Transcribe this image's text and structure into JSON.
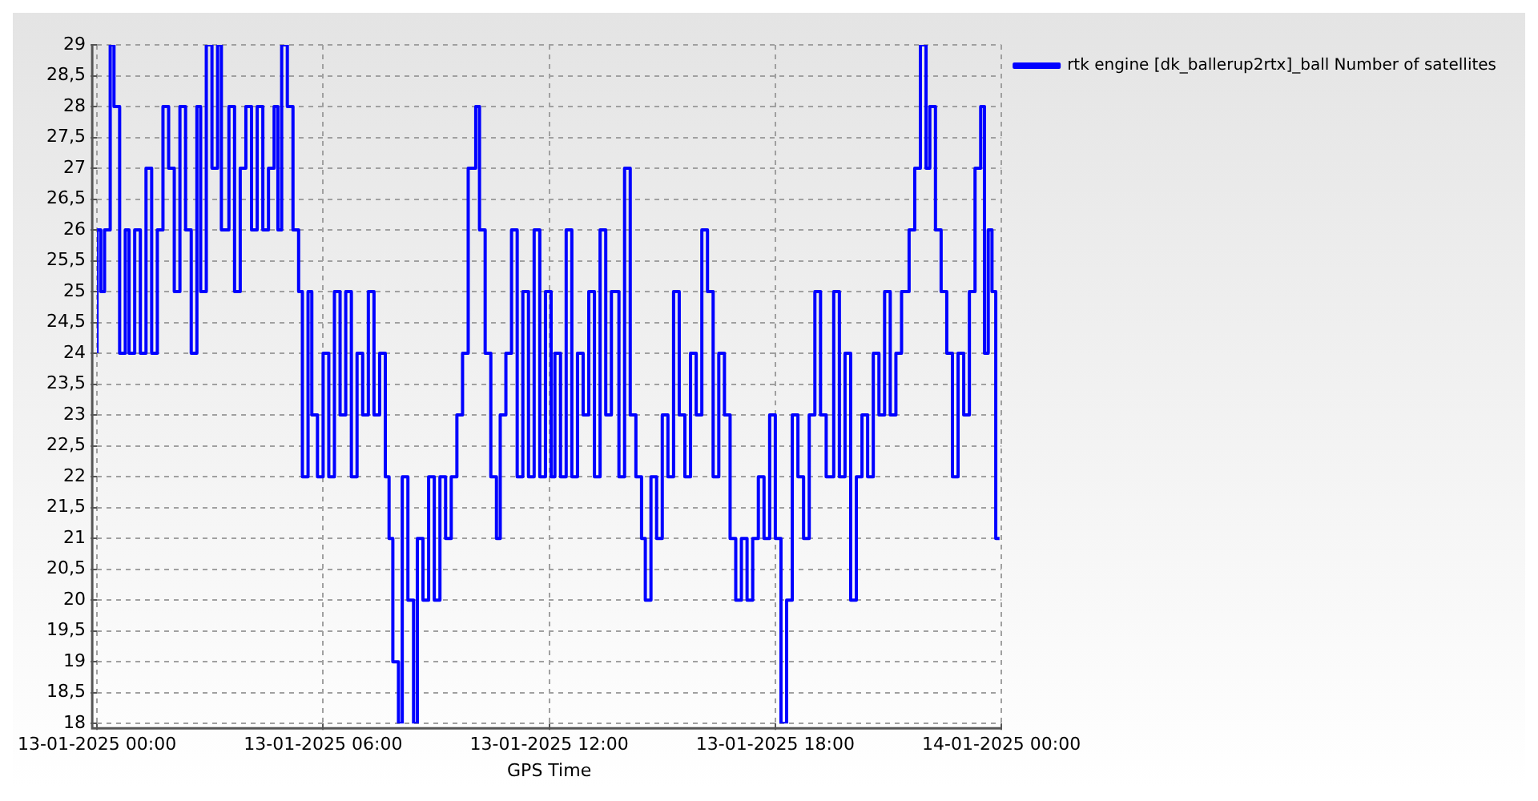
{
  "chart_data": {
    "type": "step",
    "xlabel": "GPS Time",
    "legend": "top right",
    "grid": true,
    "marker": "none",
    "line_style": "solid",
    "xlim": [
      "2025-01-13T00:00",
      "2025-01-14T00:00"
    ],
    "xticks": [
      {
        "value": "2025-01-13T00:00",
        "label": "13-01-2025 00:00"
      },
      {
        "value": "2025-01-13T06:00",
        "label": "13-01-2025 06:00"
      },
      {
        "value": "2025-01-13T12:00",
        "label": "13-01-2025 12:00"
      },
      {
        "value": "2025-01-13T18:00",
        "label": "13-01-2025 18:00"
      },
      {
        "value": "2025-01-14T00:00",
        "label": "14-01-2025 00:00"
      }
    ],
    "ylim": [
      18,
      29
    ],
    "yticks": [
      18,
      {
        "value": 18.5,
        "label": "18,5"
      },
      19,
      {
        "value": 19.5,
        "label": "19,5"
      },
      20,
      {
        "value": 20.5,
        "label": "20,5"
      },
      21,
      {
        "value": 21.5,
        "label": "21,5"
      },
      22,
      {
        "value": 22.5,
        "label": "22,5"
      },
      23,
      {
        "value": 23.5,
        "label": "23,5"
      },
      24,
      {
        "value": 24.5,
        "label": "24,5"
      },
      25,
      {
        "value": 25.5,
        "label": "25,5"
      },
      26,
      {
        "value": 26.5,
        "label": "26,5"
      },
      27,
      {
        "value": 27.5,
        "label": "27,5"
      },
      28,
      {
        "value": 28.5,
        "label": "28,5"
      },
      29
    ],
    "x": [
      "2025-01-13T00:00",
      "2025-01-13T00:06",
      "2025-01-13T00:12",
      "2025-01-13T00:21",
      "2025-01-13T00:27",
      "2025-01-13T00:36",
      "2025-01-13T00:45",
      "2025-01-13T00:51",
      "2025-01-13T01:00",
      "2025-01-13T01:09",
      "2025-01-13T01:18",
      "2025-01-13T01:27",
      "2025-01-13T01:36",
      "2025-01-13T01:45",
      "2025-01-13T01:54",
      "2025-01-13T02:03",
      "2025-01-13T02:12",
      "2025-01-13T02:21",
      "2025-01-13T02:30",
      "2025-01-13T02:39",
      "2025-01-13T02:45",
      "2025-01-13T02:54",
      "2025-01-13T03:03",
      "2025-01-13T03:12",
      "2025-01-13T03:18",
      "2025-01-13T03:30",
      "2025-01-13T03:39",
      "2025-01-13T03:48",
      "2025-01-13T03:57",
      "2025-01-13T04:06",
      "2025-01-13T04:15",
      "2025-01-13T04:24",
      "2025-01-13T04:33",
      "2025-01-13T04:42",
      "2025-01-13T04:48",
      "2025-01-13T04:54",
      "2025-01-13T05:03",
      "2025-01-13T05:12",
      "2025-01-13T05:21",
      "2025-01-13T05:27",
      "2025-01-13T05:36",
      "2025-01-13T05:42",
      "2025-01-13T05:51",
      "2025-01-13T06:00",
      "2025-01-13T06:09",
      "2025-01-13T06:18",
      "2025-01-13T06:27",
      "2025-01-13T06:36",
      "2025-01-13T06:45",
      "2025-01-13T06:54",
      "2025-01-13T07:03",
      "2025-01-13T07:12",
      "2025-01-13T07:21",
      "2025-01-13T07:30",
      "2025-01-13T07:39",
      "2025-01-13T07:45",
      "2025-01-13T07:51",
      "2025-01-13T08:00",
      "2025-01-13T08:06",
      "2025-01-13T08:15",
      "2025-01-13T08:24",
      "2025-01-13T08:30",
      "2025-01-13T08:39",
      "2025-01-13T08:48",
      "2025-01-13T08:57",
      "2025-01-13T09:06",
      "2025-01-13T09:15",
      "2025-01-13T09:24",
      "2025-01-13T09:33",
      "2025-01-13T09:42",
      "2025-01-13T09:51",
      "2025-01-13T10:03",
      "2025-01-13T10:09",
      "2025-01-13T10:18",
      "2025-01-13T10:27",
      "2025-01-13T10:36",
      "2025-01-13T10:42",
      "2025-01-13T10:51",
      "2025-01-13T11:00",
      "2025-01-13T11:09",
      "2025-01-13T11:18",
      "2025-01-13T11:27",
      "2025-01-13T11:36",
      "2025-01-13T11:45",
      "2025-01-13T11:54",
      "2025-01-13T12:03",
      "2025-01-13T12:09",
      "2025-01-13T12:18",
      "2025-01-13T12:27",
      "2025-01-13T12:36",
      "2025-01-13T12:45",
      "2025-01-13T12:54",
      "2025-01-13T13:03",
      "2025-01-13T13:12",
      "2025-01-13T13:21",
      "2025-01-13T13:30",
      "2025-01-13T13:39",
      "2025-01-13T13:51",
      "2025-01-13T14:00",
      "2025-01-13T14:09",
      "2025-01-13T14:18",
      "2025-01-13T14:27",
      "2025-01-13T14:33",
      "2025-01-13T14:42",
      "2025-01-13T14:51",
      "2025-01-13T15:00",
      "2025-01-13T15:09",
      "2025-01-13T15:18",
      "2025-01-13T15:27",
      "2025-01-13T15:36",
      "2025-01-13T15:45",
      "2025-01-13T15:54",
      "2025-01-13T16:03",
      "2025-01-13T16:12",
      "2025-01-13T16:21",
      "2025-01-13T16:30",
      "2025-01-13T16:39",
      "2025-01-13T16:48",
      "2025-01-13T16:57",
      "2025-01-13T17:06",
      "2025-01-13T17:15",
      "2025-01-13T17:24",
      "2025-01-13T17:33",
      "2025-01-13T17:42",
      "2025-01-13T17:51",
      "2025-01-13T18:00",
      "2025-01-13T18:09",
      "2025-01-13T18:18",
      "2025-01-13T18:27",
      "2025-01-13T18:36",
      "2025-01-13T18:45",
      "2025-01-13T18:54",
      "2025-01-13T19:03",
      "2025-01-13T19:12",
      "2025-01-13T19:21",
      "2025-01-13T19:33",
      "2025-01-13T19:42",
      "2025-01-13T19:51",
      "2025-01-13T20:00",
      "2025-01-13T20:09",
      "2025-01-13T20:18",
      "2025-01-13T20:27",
      "2025-01-13T20:36",
      "2025-01-13T20:45",
      "2025-01-13T20:54",
      "2025-01-13T21:03",
      "2025-01-13T21:12",
      "2025-01-13T21:21",
      "2025-01-13T21:33",
      "2025-01-13T21:42",
      "2025-01-13T21:51",
      "2025-01-13T22:00",
      "2025-01-13T22:06",
      "2025-01-13T22:15",
      "2025-01-13T22:24",
      "2025-01-13T22:33",
      "2025-01-13T22:42",
      "2025-01-13T22:51",
      "2025-01-13T23:00",
      "2025-01-13T23:09",
      "2025-01-13T23:18",
      "2025-01-13T23:27",
      "2025-01-13T23:33",
      "2025-01-13T23:39",
      "2025-01-13T23:45",
      "2025-01-13T23:51",
      "2025-01-13T23:57"
    ],
    "series": [
      {
        "name": "rtk engine [dk_ballerup2rtx]_ball Number of satellites",
        "color": "#0000ff",
        "values": [
          24,
          26,
          25,
          26,
          29,
          28,
          24,
          26,
          24,
          26,
          24,
          27,
          24,
          26,
          28,
          27,
          25,
          28,
          26,
          24,
          28,
          25,
          29,
          27,
          29,
          26,
          28,
          25,
          27,
          28,
          26,
          28,
          26,
          27,
          28,
          26,
          29,
          28,
          26,
          25,
          22,
          25,
          23,
          22,
          24,
          22,
          25,
          23,
          25,
          22,
          24,
          23,
          25,
          23,
          24,
          22,
          21,
          19,
          18,
          22,
          20,
          18,
          21,
          20,
          22,
          20,
          22,
          21,
          22,
          23,
          24,
          27,
          28,
          26,
          24,
          22,
          21,
          23,
          24,
          26,
          22,
          25,
          22,
          26,
          22,
          25,
          22,
          24,
          22,
          26,
          22,
          24,
          23,
          25,
          22,
          26,
          23,
          25,
          22,
          27,
          23,
          22,
          21,
          20,
          22,
          21,
          23,
          22,
          25,
          23,
          22,
          24,
          23,
          26,
          25,
          22,
          24,
          23,
          21,
          20,
          21,
          20,
          21,
          22,
          21,
          23,
          21,
          18,
          20,
          23,
          22,
          21,
          23,
          25,
          23,
          22,
          25,
          22,
          24,
          20,
          22,
          23,
          22,
          24,
          23,
          25,
          23,
          24,
          25,
          26,
          27,
          29,
          27,
          28,
          26,
          25,
          24,
          22,
          24,
          23,
          25,
          27,
          28,
          24,
          26,
          25,
          21
        ]
      }
    ]
  }
}
